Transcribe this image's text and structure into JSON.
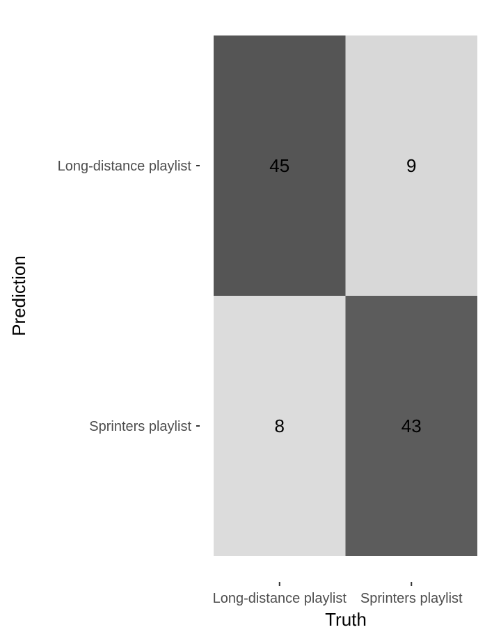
{
  "chart_data": {
    "type": "heatmap",
    "title": "",
    "xlabel": "Truth",
    "ylabel": "Prediction",
    "x_categories": [
      "Long-distance playlist",
      "Sprinters playlist"
    ],
    "y_categories": [
      "Long-distance playlist",
      "Sprinters playlist"
    ],
    "cells": [
      {
        "prediction": "Long-distance playlist",
        "truth": "Long-distance playlist",
        "value": 45
      },
      {
        "prediction": "Long-distance playlist",
        "truth": "Sprinters playlist",
        "value": 9
      },
      {
        "prediction": "Sprinters playlist",
        "truth": "Long-distance playlist",
        "value": 8
      },
      {
        "prediction": "Sprinters playlist",
        "truth": "Sprinters playlist",
        "value": 43
      }
    ],
    "grid": false,
    "legend": "none",
    "colors": {
      "high": "#555555",
      "low": "#dcdcdc",
      "tick_label": "#4d4d4d",
      "text": "#000000"
    }
  }
}
